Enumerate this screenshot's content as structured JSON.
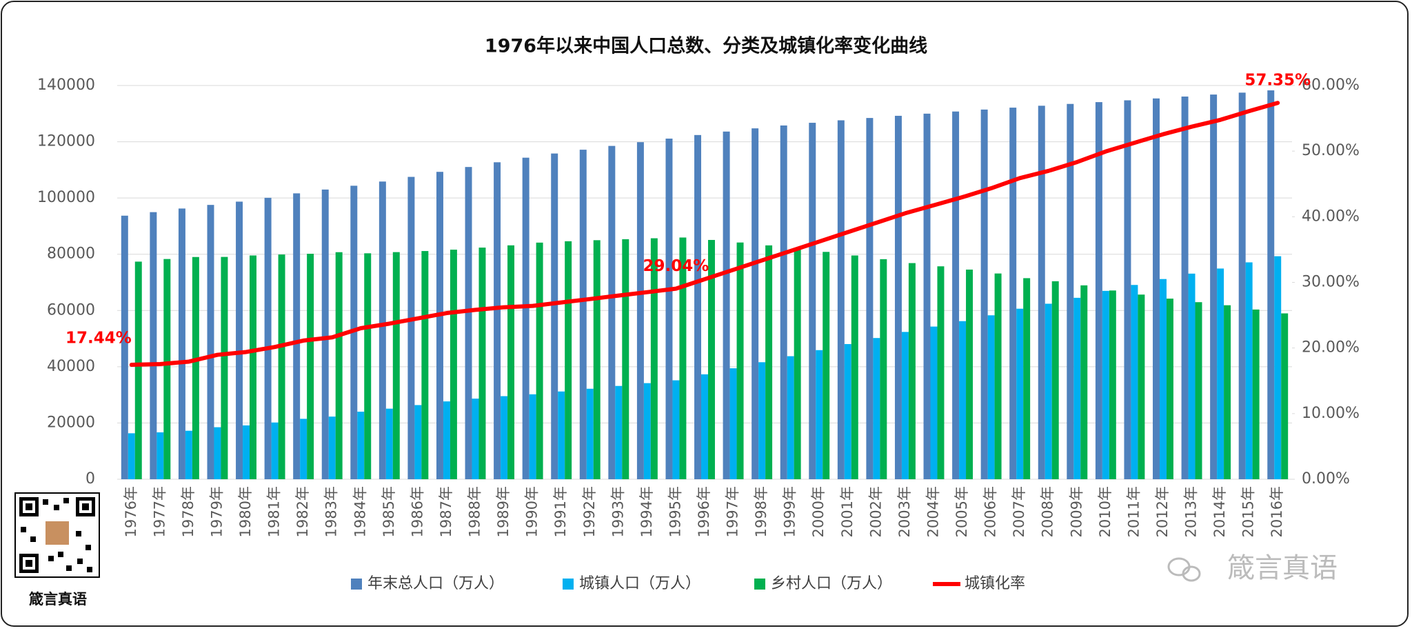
{
  "chart_data": {
    "type": "bar",
    "title": "1976年以来中国人口总数、分类及城镇化率变化曲线",
    "categories": [
      "1976年",
      "1977年",
      "1978年",
      "1979年",
      "1980年",
      "1981年",
      "1982年",
      "1983年",
      "1984年",
      "1985年",
      "1986年",
      "1987年",
      "1988年",
      "1989年",
      "1990年",
      "1991年",
      "1992年",
      "1993年",
      "1994年",
      "1995年",
      "1996年",
      "1997年",
      "1998年",
      "1999年",
      "2000年",
      "2001年",
      "2002年",
      "2003年",
      "2004年",
      "2005年",
      "2006年",
      "2007年",
      "2008年",
      "2009年",
      "2010年",
      "2011年",
      "2012年",
      "2013年",
      "2014年",
      "2015年",
      "2016年"
    ],
    "series": [
      {
        "name": "年末总人口（万人）",
        "type": "bar",
        "axis": "y",
        "color": "#4f81bd",
        "values": [
          93717,
          94974,
          96259,
          97542,
          98705,
          100072,
          101654,
          103008,
          104357,
          105851,
          107507,
          109300,
          111026,
          112704,
          114333,
          115823,
          117171,
          118517,
          119850,
          121121,
          122389,
          123626,
          124761,
          125786,
          126743,
          127627,
          128453,
          129227,
          129988,
          130756,
          131448,
          132129,
          132802,
          133450,
          134091,
          134735,
          135404,
          136072,
          136782,
          137462,
          138271
        ]
      },
      {
        "name": "城镇人口（万人）",
        "type": "bar",
        "axis": "y",
        "color": "#00b0f0",
        "values": [
          16341,
          16669,
          17245,
          18495,
          19140,
          20171,
          21480,
          22274,
          24017,
          25094,
          26366,
          27674,
          28661,
          29540,
          30195,
          31203,
          32175,
          33173,
          34169,
          35174,
          37304,
          39449,
          41608,
          43748,
          45906,
          48064,
          50212,
          52376,
          54283,
          56212,
          58288,
          60633,
          62403,
          64512,
          66978,
          69079,
          71182,
          73111,
          74916,
          77116,
          79298
        ]
      },
      {
        "name": "乡村人口（万人）",
        "type": "bar",
        "axis": "y",
        "color": "#00b050",
        "values": [
          77376,
          78305,
          79014,
          79047,
          79565,
          79901,
          80174,
          80734,
          80340,
          80757,
          81141,
          81626,
          82365,
          83164,
          84138,
          84620,
          84996,
          85344,
          85681,
          85947,
          85085,
          84177,
          83153,
          82038,
          80837,
          79563,
          78241,
          76851,
          75705,
          74544,
          73160,
          71496,
          70399,
          68938,
          67113,
          65656,
          64222,
          62961,
          61866,
          60346,
          58973
        ]
      },
      {
        "name": "城镇化率",
        "type": "line",
        "axis": "y2",
        "color": "#ff0000",
        "values": [
          17.44,
          17.55,
          17.92,
          18.96,
          19.39,
          20.16,
          21.13,
          21.62,
          23.01,
          23.71,
          24.52,
          25.32,
          25.81,
          26.21,
          26.41,
          26.94,
          27.46,
          27.99,
          28.51,
          29.04,
          30.48,
          31.91,
          33.35,
          34.78,
          36.22,
          37.66,
          39.09,
          40.53,
          41.76,
          42.99,
          44.34,
          45.89,
          46.99,
          48.34,
          49.95,
          51.27,
          52.57,
          53.73,
          54.77,
          56.1,
          57.35
        ],
        "value_labels": [
          "17.44%",
          null,
          null,
          null,
          null,
          null,
          null,
          null,
          null,
          null,
          null,
          null,
          null,
          null,
          null,
          null,
          null,
          null,
          null,
          "29.04%",
          null,
          null,
          null,
          null,
          null,
          null,
          null,
          null,
          null,
          null,
          null,
          null,
          null,
          null,
          null,
          null,
          null,
          null,
          null,
          null,
          "57.35%"
        ]
      }
    ],
    "ylim": [
      0,
      140000
    ],
    "yticks": [
      0,
      20000,
      40000,
      60000,
      80000,
      100000,
      120000,
      140000
    ],
    "y2lim": [
      0,
      60
    ],
    "y2ticks": [
      {
        "value": 0,
        "label": "0.00%"
      },
      {
        "value": 10,
        "label": "10.00%"
      },
      {
        "value": 20,
        "label": "20.00%"
      },
      {
        "value": 30,
        "label": "30.00%"
      },
      {
        "value": 40,
        "label": "40.00%"
      },
      {
        "value": 50,
        "label": "50.00%"
      },
      {
        "value": 60,
        "label": "60.00%"
      }
    ],
    "grid": true,
    "legend": "bottom",
    "qr_caption": "箴言真语",
    "watermark": "箴言真语"
  }
}
